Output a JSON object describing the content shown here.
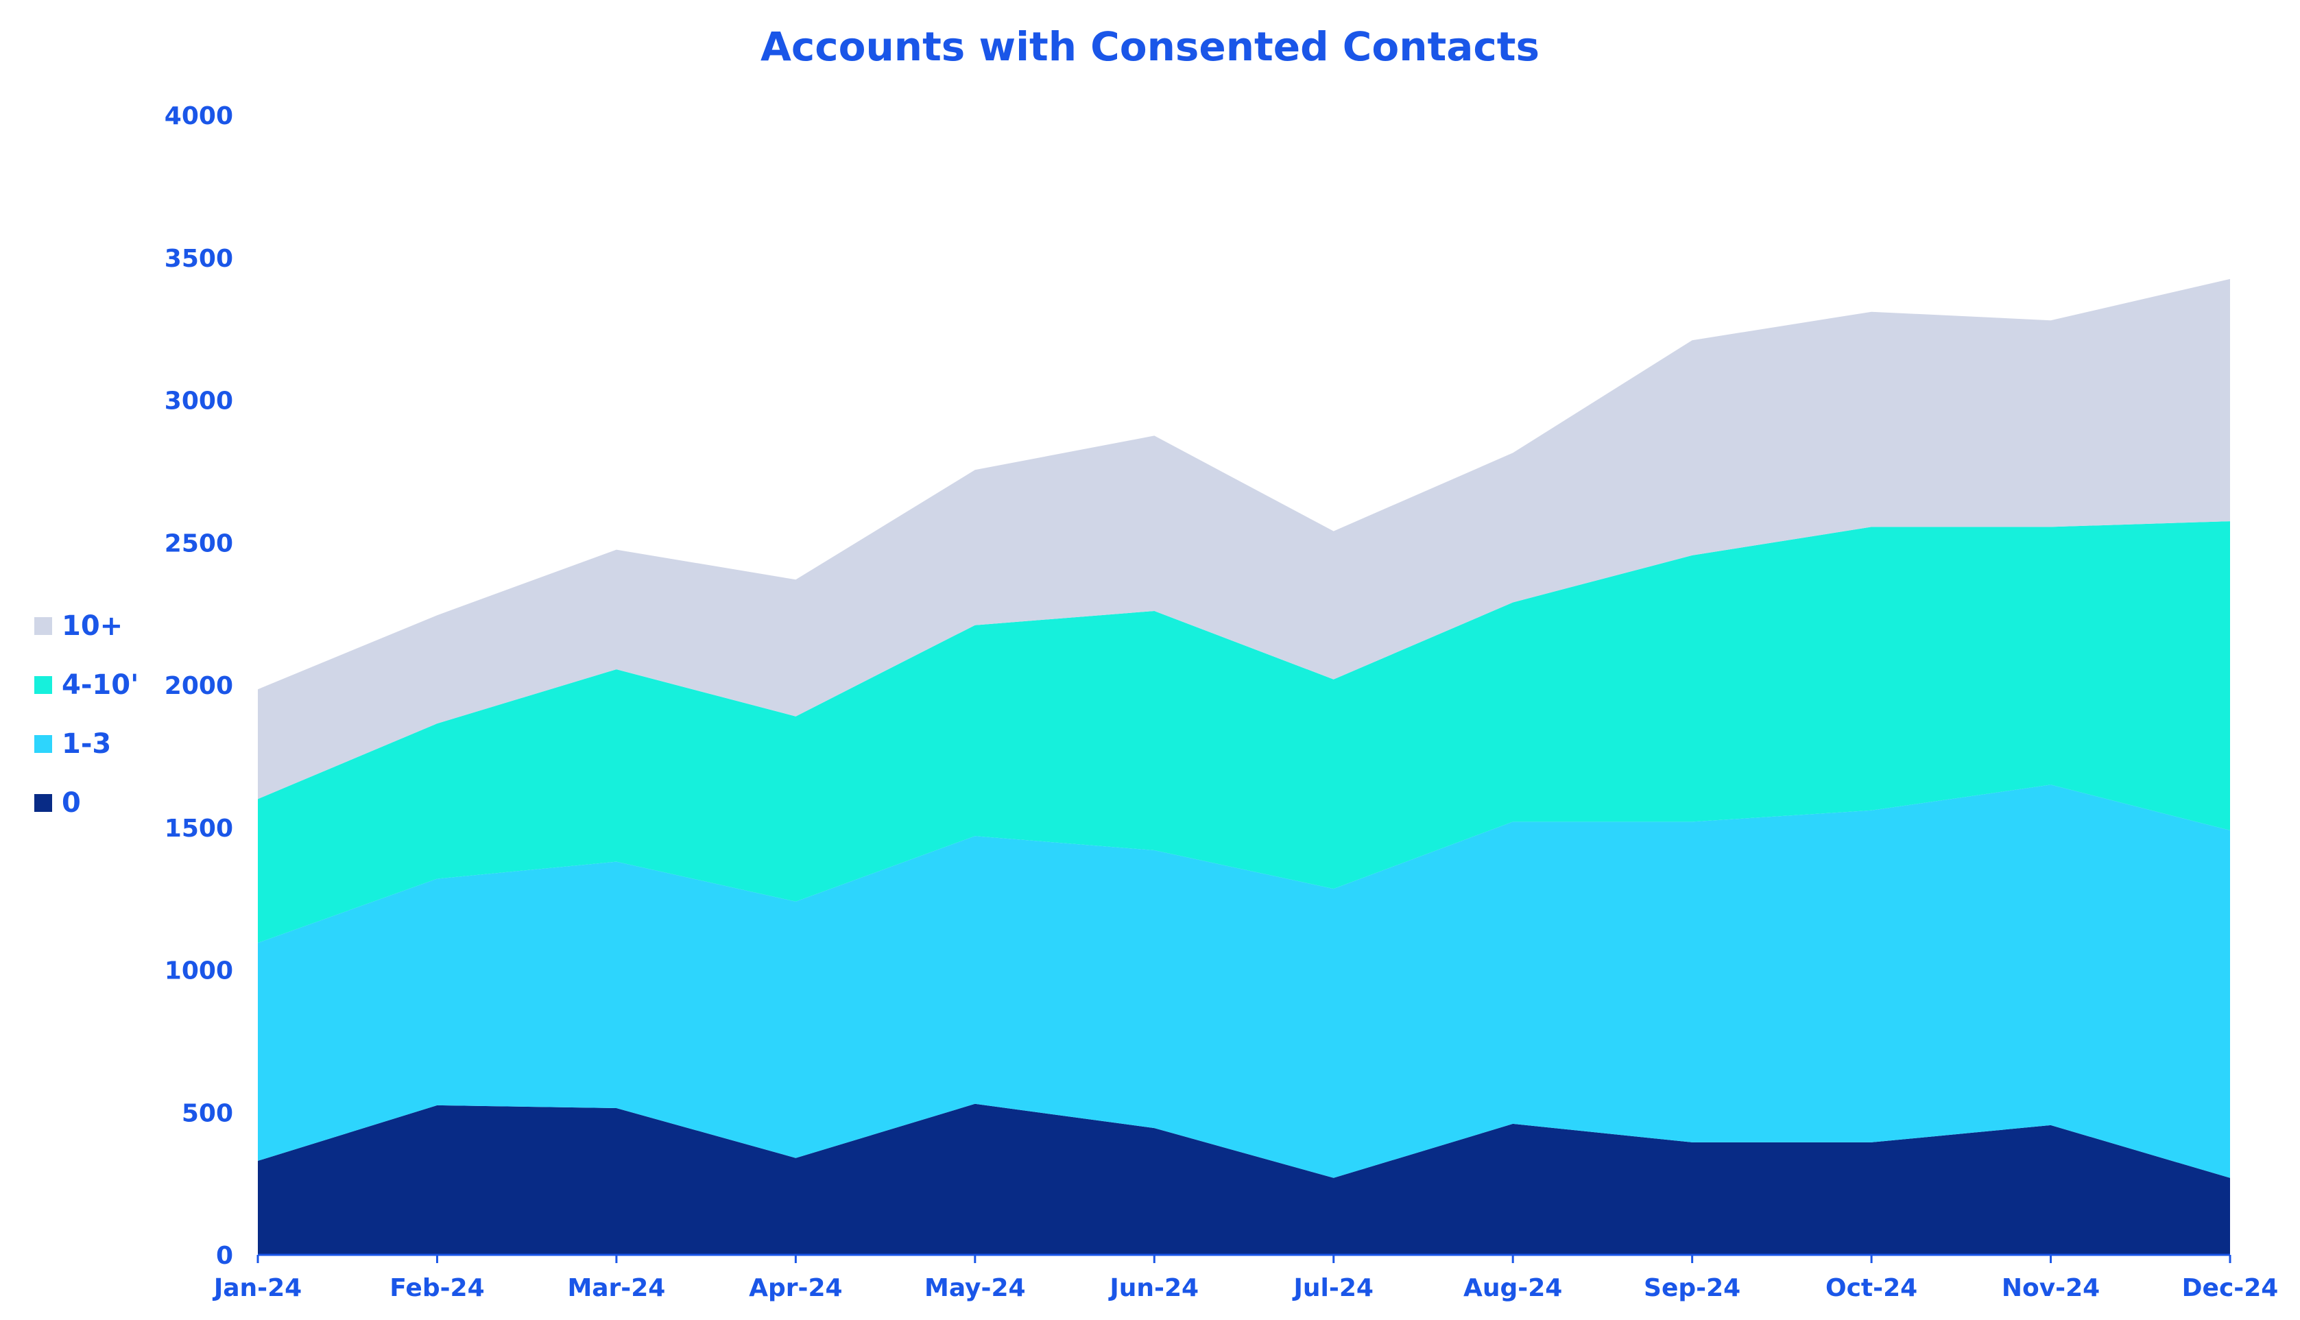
{
  "chart_data": {
    "type": "area",
    "stacked": true,
    "title": "Accounts with Consented Contacts",
    "xlabel": "",
    "ylabel": "",
    "ylim": [
      0,
      4000
    ],
    "yticks": [
      0,
      500,
      1000,
      1500,
      2000,
      2500,
      3000,
      3500,
      4000
    ],
    "categories": [
      "Jan-24",
      "Feb-24",
      "Mar-24",
      "Apr-24",
      "May-24",
      "Jun-24",
      "Jul-24",
      "Aug-24",
      "Sep-24",
      "Oct-24",
      "Nov-24",
      "Dec-24"
    ],
    "series": [
      {
        "name": "0",
        "color": "#082b86",
        "values": [
          330,
          525,
          515,
          340,
          530,
          445,
          270,
          460,
          395,
          395,
          455,
          270
        ]
      },
      {
        "name": "1-3",
        "color": "#2dd5fd",
        "values": [
          765,
          795,
          865,
          900,
          940,
          975,
          1015,
          1060,
          1125,
          1165,
          1195,
          1220
        ]
      },
      {
        "name": "4-10'",
        "color": "#16f0dc",
        "values": [
          505,
          545,
          675,
          650,
          740,
          840,
          735,
          770,
          935,
          995,
          905,
          1085
        ]
      },
      {
        "name": "10+",
        "color": "#d0d6e7",
        "values": [
          385,
          380,
          420,
          480,
          545,
          615,
          520,
          525,
          755,
          755,
          725,
          850
        ]
      }
    ],
    "legend_position": "left",
    "grid": false,
    "colors": {
      "text": "#1a56e8",
      "axis": "#1a56e8"
    }
  }
}
